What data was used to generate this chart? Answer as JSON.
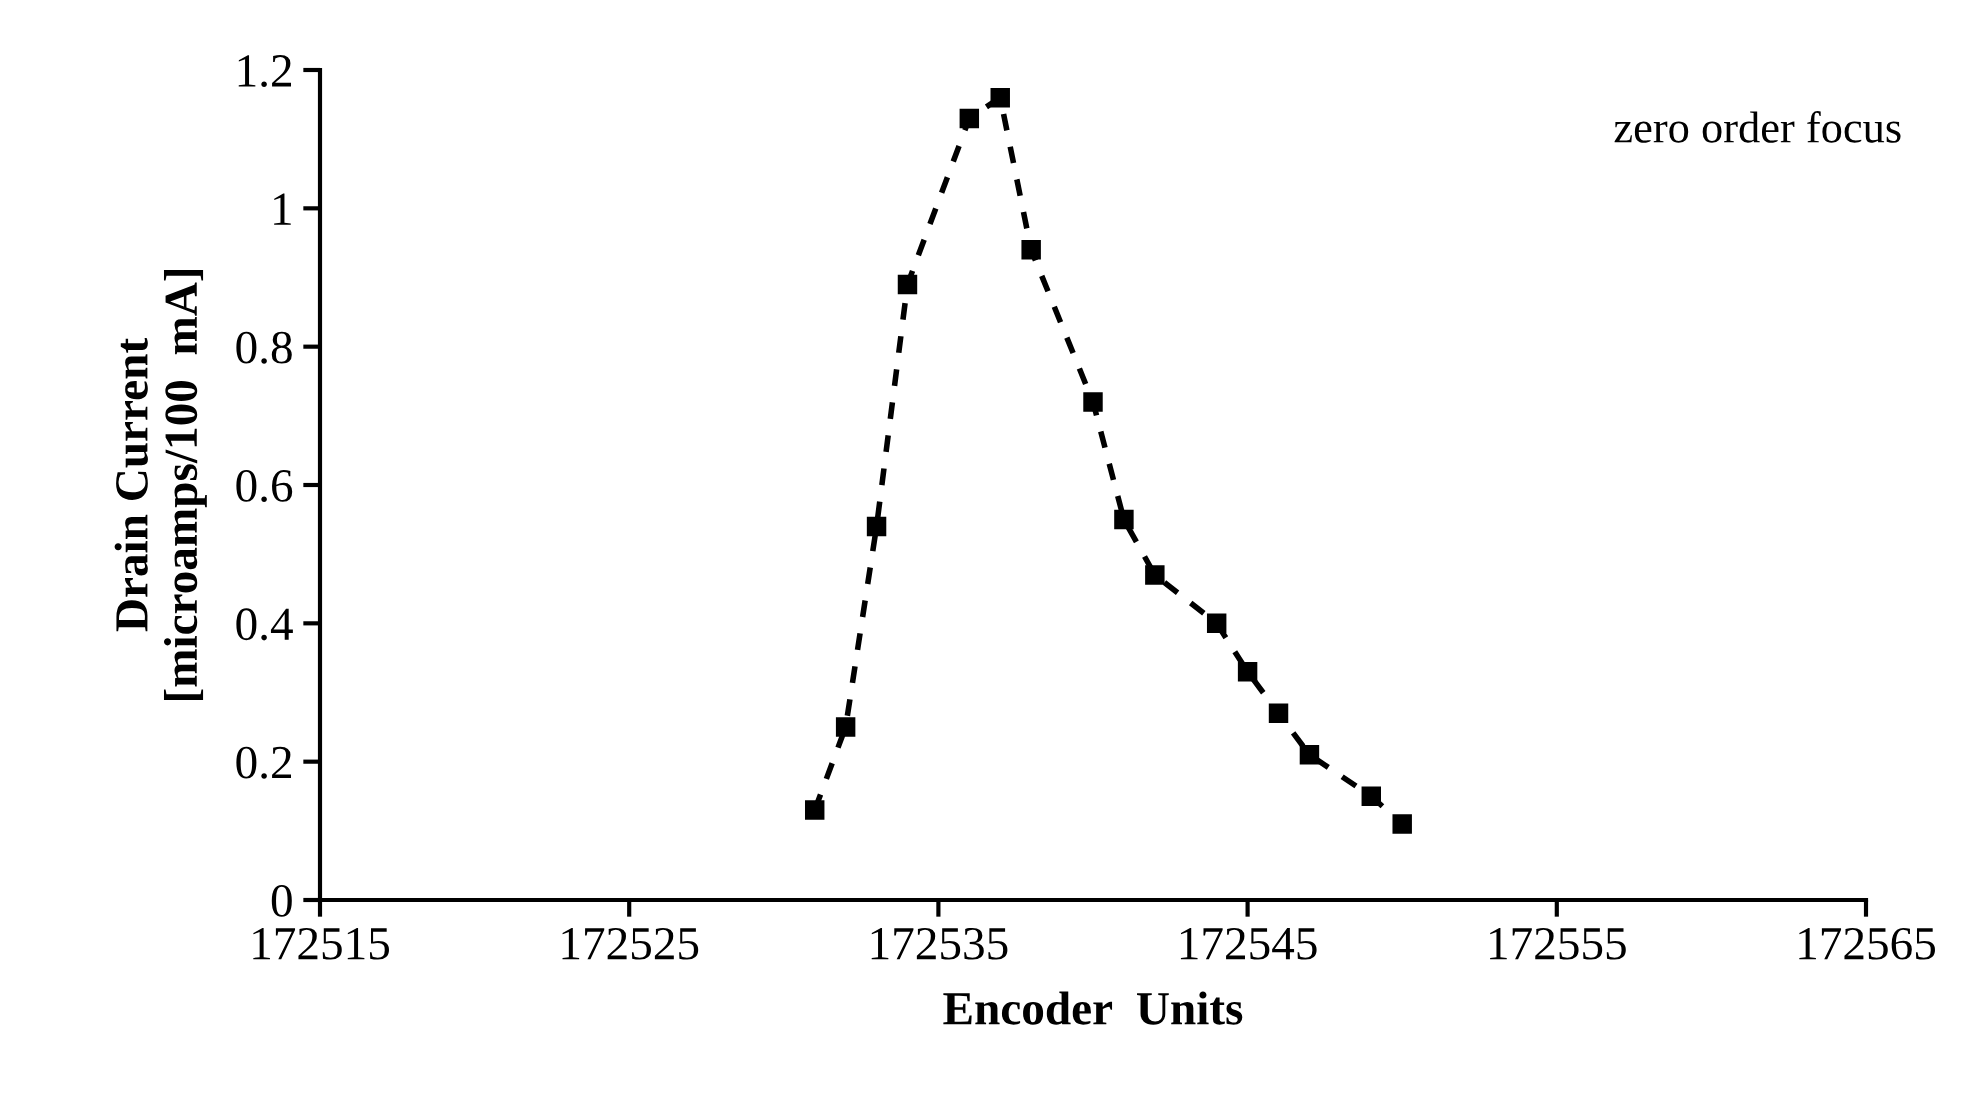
{
  "chart_data": {
    "type": "line",
    "xlabel": "Encoder  Units",
    "ylabel": "Drain Current\n[microamps/100  mA]",
    "annotations": [
      "zero order focus"
    ],
    "x": [
      172531,
      172532,
      172533,
      172534,
      172536,
      172537,
      172538,
      172540,
      172541,
      172542,
      172544,
      172545,
      172546,
      172547,
      172549,
      172550
    ],
    "series": [
      {
        "color": "#000000",
        "values": [
          0.13,
          0.25,
          0.54,
          0.89,
          1.13,
          1.16,
          0.94,
          0.72,
          0.55,
          0.47,
          0.4,
          0.33,
          0.27,
          0.21,
          0.15,
          0.11
        ]
      }
    ],
    "xlim": [
      172515,
      172565
    ],
    "xticks": [
      172515,
      172525,
      172535,
      172545,
      172555,
      172565
    ],
    "ylim": [
      0,
      1.2
    ],
    "yticks": [
      0,
      0.2,
      0.4,
      0.6,
      0.8,
      1,
      1.2
    ],
    "marker": "square",
    "line_style": "dashed",
    "grid": false,
    "legend": false
  }
}
